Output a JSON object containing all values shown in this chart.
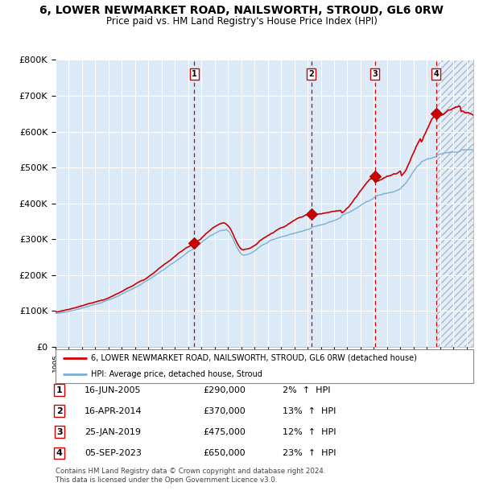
{
  "title": "6, LOWER NEWMARKET ROAD, NAILSWORTH, STROUD, GL6 0RW",
  "subtitle": "Price paid vs. HM Land Registry's House Price Index (HPI)",
  "title_fontsize": 10,
  "subtitle_fontsize": 8.5,
  "ylabel_ticks": [
    "£0",
    "£100K",
    "£200K",
    "£300K",
    "£400K",
    "£500K",
    "£600K",
    "£700K",
    "£800K"
  ],
  "ytick_values": [
    0,
    100000,
    200000,
    300000,
    400000,
    500000,
    600000,
    700000,
    800000
  ],
  "ylim": [
    0,
    800000
  ],
  "xlim_start": 1995.0,
  "xlim_end": 2026.5,
  "legend_line1": "6, LOWER NEWMARKET ROAD, NAILSWORTH, STROUD, GL6 0RW (detached house)",
  "legend_line2": "HPI: Average price, detached house, Stroud",
  "transactions": [
    {
      "num": 1,
      "date": "16-JUN-2005",
      "price": 290000,
      "pct": "2%",
      "direction": "↑",
      "year_x": 2005.46
    },
    {
      "num": 2,
      "date": "16-APR-2014",
      "price": 370000,
      "pct": "13%",
      "direction": "↑",
      "year_x": 2014.29
    },
    {
      "num": 3,
      "date": "25-JAN-2019",
      "price": 475000,
      "pct": "12%",
      "direction": "↑",
      "year_x": 2019.07
    },
    {
      "num": 4,
      "date": "05-SEP-2023",
      "price": 650000,
      "pct": "23%",
      "direction": "↑",
      "year_x": 2023.68
    }
  ],
  "footnote1": "Contains HM Land Registry data © Crown copyright and database right 2024.",
  "footnote2": "This data is licensed under the Open Government Licence v3.0.",
  "bg_color": "#dce9f7",
  "hatch_color": "#b0b8c8",
  "grid_color": "#ffffff",
  "red_line_color": "#cc0000",
  "blue_line_color": "#7bafd4",
  "dashed_line_color": "#cc0000",
  "marker_color": "#cc0000",
  "box_color": "#cc0000"
}
